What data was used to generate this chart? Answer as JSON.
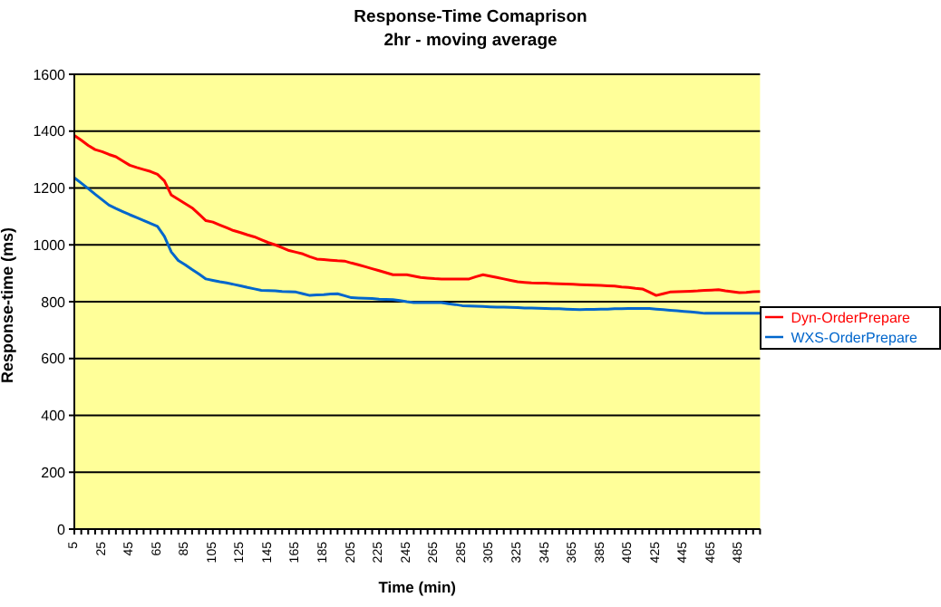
{
  "chart_data": {
    "type": "line",
    "title": "Response-Time Comaprison",
    "subtitle": "2hr - moving average",
    "xlabel": "Time (min)",
    "ylabel": "Response-time (ms)",
    "categories": [
      "5",
      null,
      null,
      null,
      "25",
      null,
      null,
      null,
      "45",
      null,
      null,
      null,
      "65",
      null,
      null,
      null,
      "85",
      null,
      null,
      null,
      "105",
      null,
      null,
      null,
      "125",
      null,
      null,
      null,
      "145",
      null,
      null,
      null,
      "165",
      null,
      null,
      null,
      "185",
      null,
      null,
      null,
      "205",
      null,
      null,
      null,
      "225",
      null,
      null,
      null,
      "245",
      null,
      null,
      null,
      "265",
      null,
      null,
      null,
      "285",
      null,
      null,
      null,
      "305",
      null,
      null,
      null,
      "325",
      null,
      null,
      null,
      "345",
      null,
      null,
      null,
      "365",
      null,
      null,
      null,
      "385",
      null,
      null,
      null,
      "405",
      null,
      null,
      null,
      "425",
      null,
      null,
      null,
      "445",
      null,
      null,
      null,
      "465",
      null,
      null,
      null,
      "485",
      null,
      null,
      null
    ],
    "series": [
      {
        "name": "Dyn-OrderPrepare",
        "color": "#ff0000",
        "values": [
          1385,
          1368,
          1350,
          1335,
          1328,
          1318,
          1310,
          1295,
          1280,
          1272,
          1265,
          1258,
          1248,
          1225,
          1175,
          1160,
          1145,
          1130,
          1108,
          1085,
          1080,
          1070,
          1060,
          1050,
          1043,
          1035,
          1028,
          1018,
          1008,
          1000,
          990,
          980,
          974,
          968,
          958,
          950,
          948,
          946,
          944,
          943,
          936,
          930,
          923,
          916,
          909,
          902,
          895,
          895,
          895,
          890,
          885,
          883,
          881,
          880,
          880,
          880,
          880,
          880,
          888,
          895,
          890,
          885,
          880,
          875,
          870,
          868,
          866,
          865,
          865,
          864,
          863,
          862,
          861,
          860,
          859,
          858,
          857,
          856,
          855,
          852,
          850,
          847,
          845,
          834,
          822,
          828,
          834,
          835,
          836,
          837,
          838,
          840,
          841,
          842,
          838,
          835,
          832,
          833,
          835,
          836
        ]
      },
      {
        "name": "WXS-OrderPrepare",
        "color": "#0066cc",
        "values": [
          1236,
          1217,
          1198,
          1178,
          1159,
          1140,
          1128,
          1117,
          1106,
          1096,
          1086,
          1075,
          1065,
          1030,
          975,
          945,
          930,
          913,
          897,
          880,
          875,
          870,
          866,
          861,
          856,
          850,
          845,
          840,
          839,
          838,
          836,
          835,
          834,
          828,
          822,
          824,
          825,
          827,
          828,
          821,
          814,
          813,
          812,
          811,
          809,
          808,
          807,
          804,
          800,
          797,
          797,
          797,
          797,
          797,
          793,
          790,
          786,
          785,
          784,
          783,
          782,
          781,
          781,
          780,
          779,
          778,
          778,
          777,
          776,
          775,
          775,
          774,
          773,
          772,
          773,
          773,
          774,
          774,
          775,
          775,
          776,
          776,
          776,
          776,
          774,
          772,
          770,
          768,
          766,
          764,
          762,
          759,
          759,
          759,
          759,
          759,
          759,
          759,
          759,
          759
        ]
      }
    ],
    "ylim": [
      0,
      1600
    ],
    "yticks": [
      0,
      200,
      400,
      600,
      800,
      1000,
      1200,
      1400,
      1600
    ],
    "grid": "y",
    "legend": "right",
    "marker": "none",
    "line_style": "solid"
  }
}
